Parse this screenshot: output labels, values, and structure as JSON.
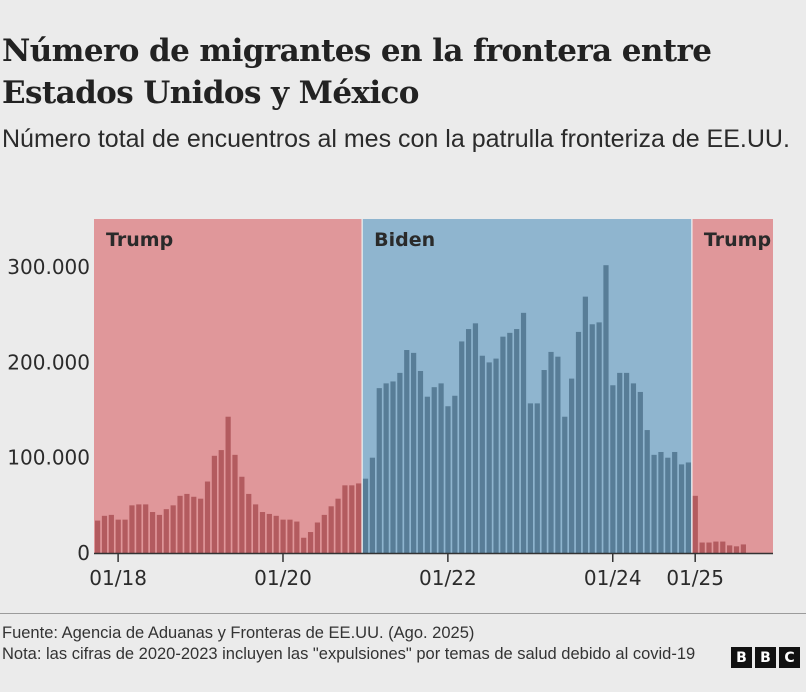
{
  "header": {
    "title": "Número de migrantes en la frontera entre Estados Unidos y México",
    "subtitle": "Número total de encuentros al mes con la patrulla fronteriza de EE.UU."
  },
  "footer": {
    "source": "Fuente: Agencia de Aduanas y Fronteras de EE.UU. (Ago. 2025)",
    "note": "Nota: las cifras de 2020-2023 incluyen las \"expulsiones\" por temas de salud debido al covid-19",
    "logo_letters": [
      "B",
      "B",
      "C"
    ]
  },
  "colors": {
    "background": "#ebebeb",
    "trump_region": "#e0979a",
    "trump_bar": "#b35b5f",
    "biden_region": "#8fb5cf",
    "biden_bar": "#587d97",
    "text": "#222222"
  },
  "chart_data": {
    "type": "bar",
    "title": "Número de migrantes en la frontera entre Estados Unidos y México",
    "subtitle": "Número total de encuentros al mes con la patrulla fronteriza de EE.UU.",
    "xlabel": "",
    "ylabel": "",
    "ylim": [
      0,
      350000
    ],
    "yticks": [
      0,
      100000,
      200000,
      300000
    ],
    "ytick_labels": [
      "0",
      "100.000",
      "200.000",
      "300.000"
    ],
    "xticks": [
      {
        "month": "2018-01",
        "label": "01/18"
      },
      {
        "month": "2020-01",
        "label": "01/20"
      },
      {
        "month": "2022-01",
        "label": "01/22"
      },
      {
        "month": "2024-01",
        "label": "01/24"
      },
      {
        "month": "2025-01",
        "label": "01/25"
      }
    ],
    "grid": false,
    "legend": "none",
    "regions": [
      {
        "label": "Trump",
        "start": "2017-10",
        "end": "2020-12",
        "color_key": "trump"
      },
      {
        "label": "Biden",
        "start": "2021-01",
        "end": "2024-12",
        "color_key": "biden"
      },
      {
        "label": "Trump",
        "start": "2025-01",
        "end": "2025-08",
        "color_key": "trump"
      }
    ],
    "start_month": "2017-10",
    "values": [
      34000,
      39000,
      40000,
      35000,
      35000,
      50000,
      51000,
      51000,
      43000,
      40000,
      46000,
      50000,
      60000,
      62000,
      59000,
      57000,
      75000,
      102000,
      108000,
      143000,
      103000,
      80000,
      62000,
      51000,
      43000,
      41000,
      39000,
      35000,
      35000,
      33000,
      16000,
      22000,
      32000,
      40000,
      49000,
      57000,
      71000,
      71000,
      73000,
      78000,
      100000,
      173000,
      178000,
      180000,
      189000,
      213000,
      210000,
      191000,
      164000,
      174000,
      178000,
      154000,
      165000,
      222000,
      235000,
      241000,
      207000,
      200000,
      204000,
      227000,
      231000,
      235000,
      252000,
      157000,
      157000,
      192000,
      211000,
      206000,
      143000,
      183000,
      232000,
      269000,
      240000,
      242000,
      302000,
      176000,
      189000,
      189000,
      178000,
      169000,
      129000,
      103000,
      106000,
      100000,
      106000,
      93000,
      95000,
      60000,
      11000,
      11000,
      12000,
      12000,
      8000,
      7000,
      9000
    ]
  }
}
